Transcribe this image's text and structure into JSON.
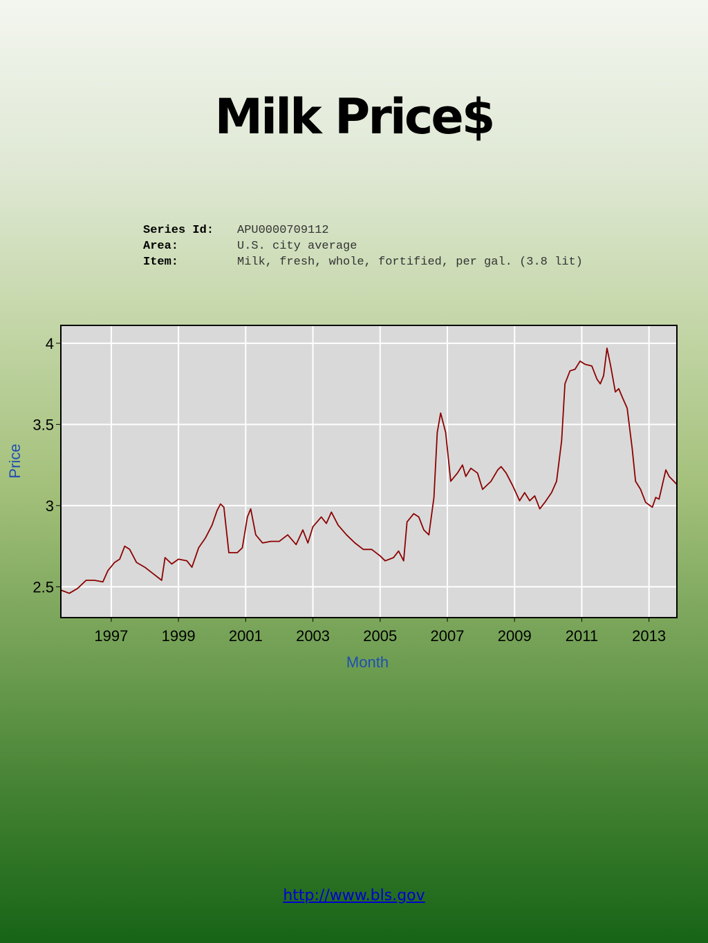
{
  "title": "Milk Price$",
  "series_info": [
    {
      "label": "Series Id:",
      "value": "APU0000709112"
    },
    {
      "label": "Area:",
      "value": "U.S. city average"
    },
    {
      "label": "Item:",
      "value": "Milk, fresh, whole, fortified, per gal. (3.8 lit)"
    }
  ],
  "link": "http://www.bls.gov",
  "colors": {
    "line": "#8b0000",
    "plot_bg": "#d9d9d9",
    "grid": "#ffffff",
    "axis_title": "#1f4fb0"
  },
  "chart_data": {
    "type": "line",
    "xlabel": "Month",
    "ylabel": "Price",
    "xlim": [
      1995.5,
      2013.83
    ],
    "ylim": [
      2.31,
      4.11
    ],
    "x_ticks": [
      "1997",
      "1999",
      "2001",
      "2003",
      "2005",
      "2007",
      "2009",
      "2011",
      "2013"
    ],
    "y_ticks": [
      "2.5",
      "3",
      "3.5",
      "4"
    ],
    "grid": true,
    "series": [
      {
        "values": [
          [
            1995.5,
            2.48
          ],
          [
            1995.75,
            2.46
          ],
          [
            1996.0,
            2.49
          ],
          [
            1996.25,
            2.54
          ],
          [
            1996.5,
            2.54
          ],
          [
            1996.75,
            2.53
          ],
          [
            1996.9,
            2.6
          ],
          [
            1997.1,
            2.65
          ],
          [
            1997.25,
            2.67
          ],
          [
            1997.4,
            2.75
          ],
          [
            1997.55,
            2.73
          ],
          [
            1997.75,
            2.65
          ],
          [
            1998.0,
            2.62
          ],
          [
            1998.25,
            2.58
          ],
          [
            1998.5,
            2.54
          ],
          [
            1998.6,
            2.68
          ],
          [
            1998.8,
            2.64
          ],
          [
            1999.0,
            2.67
          ],
          [
            1999.25,
            2.66
          ],
          [
            1999.4,
            2.62
          ],
          [
            1999.6,
            2.74
          ],
          [
            1999.8,
            2.8
          ],
          [
            2000.0,
            2.88
          ],
          [
            2000.15,
            2.97
          ],
          [
            2000.25,
            3.01
          ],
          [
            2000.35,
            2.99
          ],
          [
            2000.5,
            2.71
          ],
          [
            2000.75,
            2.71
          ],
          [
            2000.9,
            2.74
          ],
          [
            2001.05,
            2.93
          ],
          [
            2001.15,
            2.98
          ],
          [
            2001.3,
            2.82
          ],
          [
            2001.5,
            2.77
          ],
          [
            2001.75,
            2.78
          ],
          [
            2002.0,
            2.78
          ],
          [
            2002.25,
            2.82
          ],
          [
            2002.5,
            2.76
          ],
          [
            2002.7,
            2.85
          ],
          [
            2002.85,
            2.77
          ],
          [
            2003.0,
            2.87
          ],
          [
            2003.25,
            2.93
          ],
          [
            2003.4,
            2.89
          ],
          [
            2003.55,
            2.96
          ],
          [
            2003.75,
            2.88
          ],
          [
            2004.0,
            2.82
          ],
          [
            2004.25,
            2.77
          ],
          [
            2004.5,
            2.73
          ],
          [
            2004.75,
            2.73
          ],
          [
            2005.0,
            2.69
          ],
          [
            2005.15,
            2.66
          ],
          [
            2005.4,
            2.68
          ],
          [
            2005.55,
            2.72
          ],
          [
            2005.7,
            2.66
          ],
          [
            2005.8,
            2.9
          ],
          [
            2006.0,
            2.95
          ],
          [
            2006.15,
            2.93
          ],
          [
            2006.3,
            2.85
          ],
          [
            2006.45,
            2.82
          ],
          [
            2006.6,
            3.05
          ],
          [
            2006.7,
            3.45
          ],
          [
            2006.8,
            3.57
          ],
          [
            2006.95,
            3.45
          ],
          [
            2007.1,
            3.15
          ],
          [
            2007.3,
            3.2
          ],
          [
            2007.45,
            3.25
          ],
          [
            2007.55,
            3.18
          ],
          [
            2007.7,
            3.23
          ],
          [
            2007.9,
            3.2
          ],
          [
            2008.05,
            3.1
          ],
          [
            2008.3,
            3.15
          ],
          [
            2008.5,
            3.22
          ],
          [
            2008.6,
            3.24
          ],
          [
            2008.75,
            3.2
          ],
          [
            2008.95,
            3.12
          ],
          [
            2009.15,
            3.03
          ],
          [
            2009.3,
            3.08
          ],
          [
            2009.45,
            3.03
          ],
          [
            2009.6,
            3.06
          ],
          [
            2009.75,
            2.98
          ],
          [
            2009.9,
            3.02
          ],
          [
            2010.1,
            3.08
          ],
          [
            2010.25,
            3.15
          ],
          [
            2010.4,
            3.4
          ],
          [
            2010.5,
            3.75
          ],
          [
            2010.65,
            3.83
          ],
          [
            2010.8,
            3.84
          ],
          [
            2010.95,
            3.89
          ],
          [
            2011.1,
            3.87
          ],
          [
            2011.3,
            3.86
          ],
          [
            2011.45,
            3.78
          ],
          [
            2011.55,
            3.75
          ],
          [
            2011.65,
            3.8
          ],
          [
            2011.75,
            3.97
          ],
          [
            2011.85,
            3.87
          ],
          [
            2012.0,
            3.7
          ],
          [
            2012.1,
            3.72
          ],
          [
            2012.2,
            3.67
          ],
          [
            2012.35,
            3.6
          ],
          [
            2012.5,
            3.35
          ],
          [
            2012.6,
            3.15
          ],
          [
            2012.75,
            3.1
          ],
          [
            2012.9,
            3.02
          ],
          [
            2013.1,
            2.99
          ],
          [
            2013.2,
            3.05
          ],
          [
            2013.3,
            3.04
          ],
          [
            2013.5,
            3.22
          ],
          [
            2013.6,
            3.18
          ],
          [
            2013.83,
            3.13
          ]
        ]
      }
    ]
  }
}
